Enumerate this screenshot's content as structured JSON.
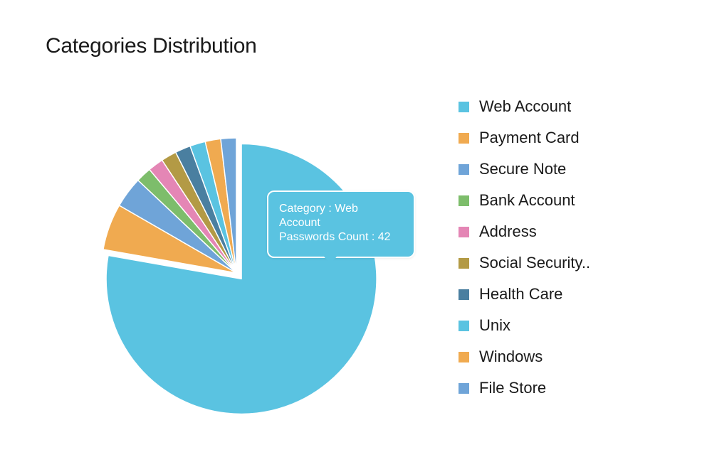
{
  "chart_data": {
    "type": "pie",
    "title": "Categories Distribution",
    "slices": [
      {
        "label": "Web Account",
        "value": 42,
        "color": "#5ac3e1"
      },
      {
        "label": "Payment Card",
        "value": 3,
        "color": "#f0aa50"
      },
      {
        "label": "Secure Note",
        "value": 2,
        "color": "#6fa4d8"
      },
      {
        "label": "Bank Account",
        "value": 1,
        "color": "#7dbd6b"
      },
      {
        "label": "Address",
        "value": 1,
        "color": "#e486b5"
      },
      {
        "label": "Social Security..",
        "value": 1,
        "color": "#b39a45"
      },
      {
        "label": "Health Care",
        "value": 1,
        "color": "#4a7fa0"
      },
      {
        "label": "Unix",
        "value": 1,
        "color": "#5ac3e1"
      },
      {
        "label": "Windows",
        "value": 1,
        "color": "#f0aa50"
      },
      {
        "label": "File Store",
        "value": 1,
        "color": "#6fa4d8"
      }
    ],
    "legend_position": "right",
    "exploded_slice": "Web Account"
  },
  "tooltip": {
    "line1": "Category : Web",
    "line2": "Account",
    "line3": "Passwords Count : 42"
  }
}
